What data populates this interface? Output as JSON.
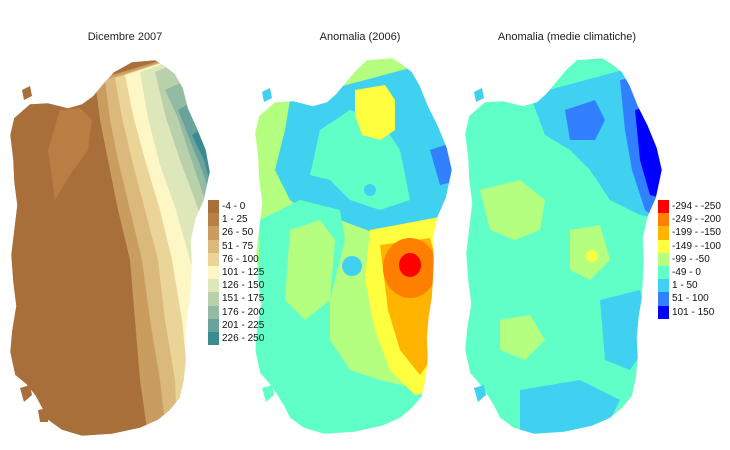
{
  "maps": [
    {
      "title": "Dicembre 2007",
      "legend": [
        {
          "label": "-4 - 0",
          "color": "#a86f3b"
        },
        {
          "label": "1 - 25",
          "color": "#b98045"
        },
        {
          "label": "26 - 50",
          "color": "#c99c60"
        },
        {
          "label": "51 - 75",
          "color": "#dbb97c"
        },
        {
          "label": "76 - 100",
          "color": "#ead498"
        },
        {
          "label": "101 - 125",
          "color": "#fdf7c6"
        },
        {
          "label": "126 - 150",
          "color": "#dde7b9"
        },
        {
          "label": "151 - 175",
          "color": "#b8d1ab"
        },
        {
          "label": "176 - 200",
          "color": "#93bba4"
        },
        {
          "label": "201 - 225",
          "color": "#69a39b"
        },
        {
          "label": "226 - 250",
          "color": "#3b8a91"
        }
      ]
    },
    {
      "title": "Anomalia (2006)",
      "legend": []
    },
    {
      "title": "Anomalia (medie climatiche)",
      "legend": [
        {
          "label": "-294 - -250",
          "color": "#ff0000"
        },
        {
          "label": "-249 - -200",
          "color": "#ff8000"
        },
        {
          "label": "-199 - -150",
          "color": "#ffb400"
        },
        {
          "label": "-149 - -100",
          "color": "#ffff40"
        },
        {
          "label": "-99 - -50",
          "color": "#b4ff80"
        },
        {
          "label": "-49 - 0",
          "color": "#60ffc8"
        },
        {
          "label": "1 - 50",
          "color": "#40d0f0"
        },
        {
          "label": "51 - 100",
          "color": "#3080ff"
        },
        {
          "label": "101 - 150",
          "color": "#0000ff"
        }
      ]
    }
  ]
}
